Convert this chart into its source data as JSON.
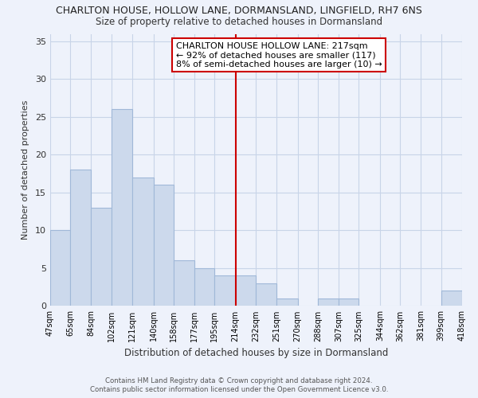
{
  "title": "CHARLTON HOUSE, HOLLOW LANE, DORMANSLAND, LINGFIELD, RH7 6NS",
  "subtitle": "Size of property relative to detached houses in Dormansland",
  "xlabel": "Distribution of detached houses by size in Dormansland",
  "ylabel": "Number of detached properties",
  "bin_labels": [
    "47sqm",
    "65sqm",
    "84sqm",
    "102sqm",
    "121sqm",
    "140sqm",
    "158sqm",
    "177sqm",
    "195sqm",
    "214sqm",
    "232sqm",
    "251sqm",
    "270sqm",
    "288sqm",
    "307sqm",
    "325sqm",
    "344sqm",
    "362sqm",
    "381sqm",
    "399sqm",
    "418sqm"
  ],
  "bin_edges": [
    47,
    65,
    84,
    102,
    121,
    140,
    158,
    177,
    195,
    214,
    232,
    251,
    270,
    288,
    307,
    325,
    344,
    362,
    381,
    399,
    418
  ],
  "counts": [
    10,
    18,
    13,
    26,
    17,
    16,
    6,
    5,
    4,
    4,
    3,
    1,
    0,
    1,
    1,
    0,
    0,
    0,
    0,
    2,
    0
  ],
  "bar_color": "#ccd9ec",
  "bar_edge_color": "#a0b8d8",
  "vline_x": 214,
  "vline_color": "#cc0000",
  "annotation_title": "CHARLTON HOUSE HOLLOW LANE: 217sqm",
  "annotation_line1": "← 92% of detached houses are smaller (117)",
  "annotation_line2": "8% of semi-detached houses are larger (10) →",
  "annotation_box_color": "#ffffff",
  "annotation_box_edge": "#cc0000",
  "ylim": [
    0,
    36
  ],
  "yticks": [
    0,
    5,
    10,
    15,
    20,
    25,
    30,
    35
  ],
  "footer1": "Contains HM Land Registry data © Crown copyright and database right 2024.",
  "footer2": "Contains public sector information licensed under the Open Government Licence v3.0.",
  "background_color": "#eef2fb",
  "grid_color": "#c8d4e8"
}
